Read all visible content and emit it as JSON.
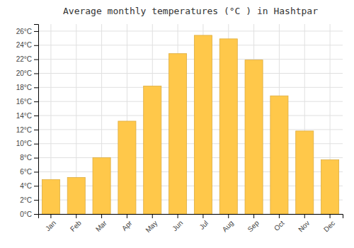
{
  "chart_data": {
    "type": "bar",
    "title": "Average monthly temperatures (°C ) in Hashtpar",
    "categories": [
      "Jan",
      "Feb",
      "Mar",
      "Apr",
      "May",
      "Jun",
      "Jul",
      "Aug",
      "Sep",
      "Oct",
      "Nov",
      "Dec"
    ],
    "values": [
      4.9,
      5.2,
      8.0,
      13.2,
      18.2,
      22.8,
      25.4,
      24.9,
      21.9,
      16.8,
      11.8,
      7.7
    ],
    "color": "#FFC84A",
    "ylim": [
      0,
      27
    ],
    "yticks": [
      {
        "value": 0,
        "label": "0°C"
      },
      {
        "value": 2,
        "label": "2°C"
      },
      {
        "value": 4,
        "label": "4°C"
      },
      {
        "value": 6,
        "label": "6°C"
      },
      {
        "value": 8,
        "label": "8°C"
      },
      {
        "value": 10,
        "label": "10°C"
      },
      {
        "value": 12,
        "label": "12°C"
      },
      {
        "value": 14,
        "label": "14°C"
      },
      {
        "value": 16,
        "label": "16°C"
      },
      {
        "value": 18,
        "label": "18°C"
      },
      {
        "value": 20,
        "label": "20°C"
      },
      {
        "value": 22,
        "label": "22°C"
      },
      {
        "value": 24,
        "label": "24°C"
      },
      {
        "value": 26,
        "label": "26°C"
      }
    ],
    "grid": true
  }
}
